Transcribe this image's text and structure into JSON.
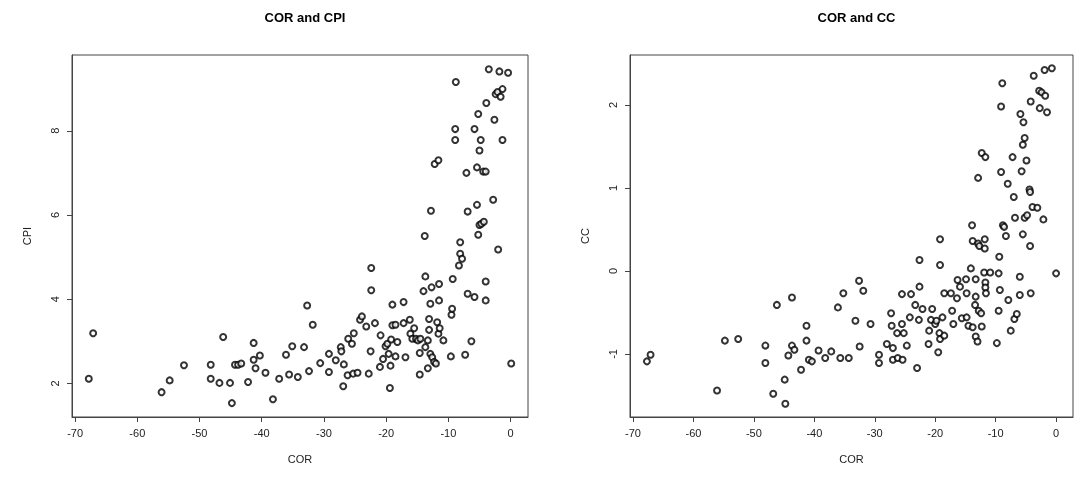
{
  "chart_data": [
    {
      "type": "scatter",
      "title": "COR and CPI",
      "xlabel": "COR",
      "ylabel": "CPI",
      "marker": "circle",
      "xlim": [
        -70.5,
        2.8
      ],
      "ylim": [
        1.2,
        9.8
      ],
      "xticks": [
        -70,
        -60,
        -50,
        -40,
        -30,
        -20,
        -10,
        0
      ],
      "yticks": [
        2,
        4,
        6,
        8
      ],
      "x": [
        -67.8,
        -67.1,
        -56.1,
        -54.8,
        -52.5,
        -48.2,
        -48.2,
        -46.8,
        -46.2,
        -45.1,
        -44.8,
        -44.3,
        -43.8,
        -43.3,
        -42.2,
        -41.3,
        -41.3,
        -41.0,
        -40.3,
        -39.4,
        -38.2,
        -37.2,
        -36.1,
        -35.6,
        -35.1,
        -34.2,
        -33.2,
        -32.7,
        -32.4,
        -31.8,
        -30.6,
        -29.2,
        -29.2,
        -28.1,
        -27.3,
        -27.2,
        -26.9,
        -26.8,
        -26.2,
        -26.1,
        -25.5,
        -25.3,
        -25.2,
        -24.6,
        -24.2,
        -23.9,
        -23.2,
        -22.8,
        -22.5,
        -22.4,
        -22.4,
        -21.8,
        -21.0,
        -20.9,
        -20.5,
        -20.1,
        -19.8,
        -19.6,
        -19.4,
        -19.3,
        -19.2,
        -19.0,
        -19.0,
        -18.5,
        -18.5,
        -18.2,
        -17.2,
        -17.2,
        -16.9,
        -16.2,
        -16.1,
        -15.8,
        -15.5,
        -15.2,
        -14.9,
        -14.6,
        -14.6,
        -14.5,
        -14.0,
        -13.8,
        -13.7,
        -13.7,
        -13.3,
        -13.3,
        -13.1,
        -13.1,
        -12.9,
        -12.9,
        -12.8,
        -12.7,
        -12.6,
        -12.3,
        -12.2,
        -12.0,
        -11.8,
        -11.6,
        -11.6,
        -11.5,
        -11.5,
        -11.4,
        -10.8,
        -9.6,
        -9.5,
        -9.4,
        -9.3,
        -8.9,
        -8.9,
        -8.8,
        -8.3,
        -8.1,
        -8.1,
        -7.8,
        -7.3,
        -7.1,
        -6.9,
        -6.9,
        -6.3,
        -5.8,
        -5.8,
        -5.4,
        -5.4,
        -5.2,
        -5.2,
        -5.0,
        -5.0,
        -4.8,
        -4.7,
        -4.4,
        -4.3,
        -4.0,
        -4.0,
        -4.0,
        -3.9,
        -3.5,
        -2.8,
        -2.6,
        -2.4,
        -2.1,
        -2.0,
        -1.8,
        -1.6,
        -1.3,
        -1.3,
        -0.4,
        0.1
      ],
      "series": [
        {
          "color": "#000000",
          "values": [
            2.11,
            3.19,
            1.79,
            2.07,
            2.43,
            2.44,
            2.11,
            2.01,
            3.1,
            2.01,
            1.53,
            2.44,
            2.44,
            2.47,
            2.03,
            2.96,
            2.56,
            2.36,
            2.66,
            2.25,
            1.62,
            2.11,
            2.68,
            2.21,
            2.88,
            2.15,
            2.86,
            3.85,
            2.29,
            3.39,
            2.48,
            2.7,
            2.27,
            2.55,
            2.86,
            2.76,
            1.93,
            2.45,
            2.19,
            3.06,
            2.94,
            2.23,
            3.19,
            2.25,
            3.51,
            3.59,
            3.35,
            2.23,
            2.76,
            4.74,
            4.21,
            3.43,
            2.39,
            3.14,
            2.58,
            2.88,
            2.94,
            2.7,
            1.89,
            2.42,
            3.04,
            3.87,
            3.38,
            3.39,
            2.64,
            2.98,
            3.93,
            3.43,
            2.62,
            3.51,
            3.18,
            3.06,
            3.31,
            3.06,
            3.02,
            2.21,
            2.72,
            3.06,
            4.19,
            5.5,
            4.54,
            2.86,
            2.36,
            3.02,
            3.27,
            3.53,
            2.7,
            3.89,
            6.1,
            4.28,
            2.62,
            2.51,
            7.21,
            2.47,
            3.45,
            7.3,
            3.18,
            4.36,
            3.97,
            3.31,
            3.02,
            2.64,
            3.63,
            3.77,
            4.48,
            7.78,
            8.04,
            9.16,
            4.8,
            5.35,
            5.08,
            4.96,
            2.68,
            7.0,
            6.08,
            4.13,
            3.0,
            8.04,
            4.05,
            7.13,
            6.24,
            5.53,
            8.4,
            7.53,
            5.76,
            7.78,
            5.79,
            7.03,
            5.84,
            7.03,
            4.42,
            3.97,
            8.66,
            9.46,
            6.36,
            8.26,
            8.87,
            8.92,
            5.18,
            9.41,
            8.81,
            8.99,
            7.78,
            9.38,
            2.47
          ]
        }
      ]
    },
    {
      "type": "scatter",
      "title": "COR and CC",
      "xlabel": "COR",
      "ylabel": "CC",
      "marker": "circle",
      "xlim": [
        -70.5,
        2.8
      ],
      "ylim": [
        -1.76,
        2.6
      ],
      "xticks": [
        -70,
        -60,
        -50,
        -40,
        -30,
        -20,
        -10,
        0
      ],
      "yticks": [
        -1,
        0,
        1,
        2
      ],
      "x": [
        -67.7,
        -67.1,
        -56.1,
        -54.8,
        -52.6,
        -48.1,
        -48.1,
        -46.8,
        -46.2,
        -44.9,
        -44.8,
        -44.3,
        -43.7,
        -43.7,
        -43.3,
        -42.2,
        -41.3,
        -41.3,
        -40.9,
        -40.4,
        -39.3,
        -38.2,
        -37.2,
        -36.1,
        -35.7,
        -35.2,
        -34.3,
        -33.2,
        -32.6,
        -32.5,
        -31.9,
        -30.7,
        -29.3,
        -29.3,
        -28.0,
        -27.3,
        -27.2,
        -27.0,
        -27.0,
        -26.3,
        -26.2,
        -25.5,
        -25.5,
        -25.4,
        -25.2,
        -24.7,
        -24.2,
        -24.0,
        -23.3,
        -23.0,
        -22.7,
        -22.6,
        -22.6,
        -22.1,
        -21.1,
        -21.0,
        -20.7,
        -20.5,
        -20.0,
        -19.8,
        -19.5,
        -19.3,
        -19.2,
        -19.2,
        -19.2,
        -18.8,
        -18.5,
        -18.5,
        -17.4,
        -17.2,
        -17.0,
        -16.4,
        -16.3,
        -15.9,
        -15.6,
        -14.9,
        -14.8,
        -14.8,
        -14.5,
        -14.1,
        -13.9,
        -13.8,
        -13.8,
        -13.4,
        -13.3,
        -13.3,
        -13.3,
        -13.0,
        -12.9,
        -12.9,
        -12.8,
        -12.7,
        -12.4,
        -12.3,
        -12.3,
        -11.7,
        -11.8,
        -11.8,
        -11.9,
        -11.7,
        -11.7,
        -11.6,
        -10.9,
        -9.8,
        -9.5,
        -9.5,
        -9.4,
        -9.3,
        -9.1,
        -9.1,
        -8.9,
        -8.8,
        -8.6,
        -8.3,
        -8.0,
        -7.9,
        -7.5,
        -7.2,
        -7.0,
        -6.9,
        -6.8,
        -6.5,
        -6.0,
        -6.0,
        -5.9,
        -5.7,
        -5.5,
        -5.4,
        -5.5,
        -5.2,
        -5.2,
        -4.9,
        -4.8,
        -4.4,
        -4.3,
        -4.3,
        -4.2,
        -4.2,
        -3.9,
        -3.7,
        -3.1,
        -2.8,
        -2.7,
        -2.4,
        -2.1,
        -1.9,
        -1.8,
        -1.5,
        -0.7,
        0.0
      ],
      "series": [
        {
          "color": "#000000",
          "values": [
            -1.09,
            -1.01,
            -1.44,
            -0.84,
            -0.82,
            -0.9,
            -1.11,
            -1.48,
            -0.41,
            -1.31,
            -1.6,
            -1.02,
            -0.32,
            -0.9,
            -0.95,
            -1.19,
            -0.66,
            -0.84,
            -1.07,
            -1.09,
            -0.96,
            -1.05,
            -0.97,
            -0.44,
            -1.05,
            -0.27,
            -1.05,
            -0.6,
            -0.12,
            -0.91,
            -0.24,
            -0.64,
            -1.01,
            -1.11,
            -0.88,
            -0.51,
            -0.66,
            -0.93,
            -1.07,
            -0.75,
            -1.05,
            -0.64,
            -0.28,
            -1.07,
            -0.75,
            -0.9,
            -0.56,
            -0.28,
            -0.41,
            -1.17,
            -0.59,
            0.13,
            -0.19,
            -0.46,
            -0.88,
            -0.72,
            -0.59,
            -0.46,
            -0.64,
            -0.6,
            -0.98,
            -0.75,
            -0.82,
            0.07,
            0.38,
            -0.56,
            -0.78,
            -0.27,
            -0.27,
            -0.48,
            -0.64,
            -0.33,
            -0.11,
            -0.19,
            -0.57,
            -0.1,
            -0.27,
            -0.56,
            -0.66,
            0.03,
            0.55,
            0.36,
            -0.68,
            -0.41,
            -0.1,
            -0.31,
            -0.79,
            -0.85,
            0.33,
            1.12,
            -0.48,
            0.3,
            -0.51,
            -0.67,
            1.42,
            1.37,
            0.38,
            0.27,
            -0.02,
            -0.14,
            -0.2,
            -0.27,
            -0.02,
            -0.87,
            -0.48,
            -0.03,
            0.17,
            -0.23,
            1.98,
            1.19,
            2.26,
            0.55,
            0.53,
            0.42,
            1.05,
            -0.35,
            -0.72,
            1.37,
            0.89,
            -0.58,
            0.64,
            -0.52,
            -0.29,
            -0.07,
            1.89,
            1.2,
            0.44,
            1.79,
            1.52,
            1.6,
            0.64,
            1.33,
            0.67,
            0.98,
            0.95,
            0.3,
            2.04,
            -0.27,
            0.77,
            2.35,
            0.76,
            2.17,
            1.96,
            2.15,
            0.62,
            2.42,
            2.11,
            1.91,
            2.44,
            -0.03
          ]
        }
      ]
    }
  ]
}
